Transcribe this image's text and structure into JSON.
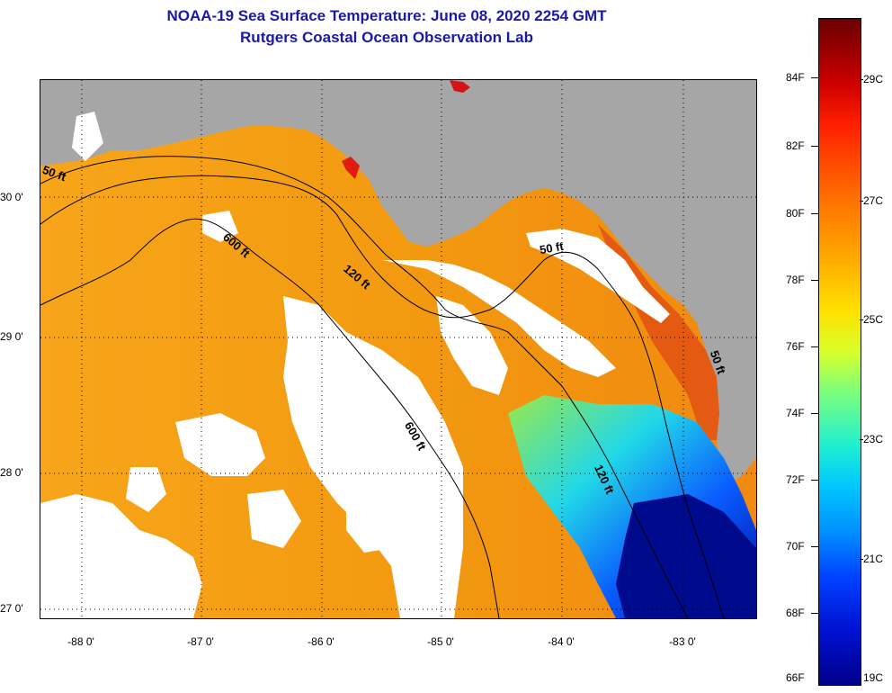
{
  "title": {
    "line1": "NOAA-19 Sea Surface Temperature:  June 08, 2020 2254 GMT",
    "line2": "Rutgers Coastal Ocean Observation Lab"
  },
  "axes": {
    "lat_labels": [
      "30 0'",
      "29 0'",
      "28 0'",
      "27 0'"
    ],
    "lon_labels": [
      "-88 0'",
      "-87 0'",
      "-86 0'",
      "-85 0'",
      "-84 0'",
      "-83 0'"
    ]
  },
  "contours": [
    "50 ft",
    "600 ft",
    "120 ft",
    "50 ft",
    "600 ft",
    "120 ft",
    "50 ft"
  ],
  "colorbar": {
    "fahrenheit": [
      "84F",
      "82F",
      "80F",
      "78F",
      "76F",
      "74F",
      "72F",
      "70F",
      "68F",
      "66F"
    ],
    "celsius": [
      "29C",
      "27C",
      "25C",
      "23C",
      "21C",
      "19C"
    ]
  },
  "colors": {
    "land": "#a6a6a6",
    "cloud": "#ffffff",
    "title": "#1a1aa8",
    "warm": "#f39a10",
    "cool": "#0010d0"
  }
}
